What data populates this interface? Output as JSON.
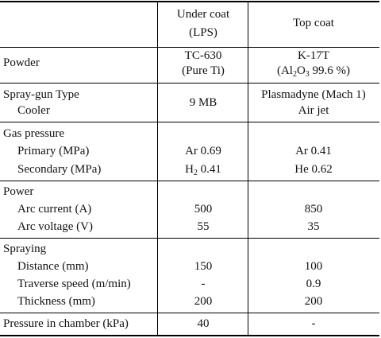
{
  "header": {
    "col1": "",
    "col2": "Under coat",
    "col2b": "(LPS)",
    "col3": "Top coat"
  },
  "powder": {
    "label": "Powder",
    "under": "TC-630",
    "under2": "(Pure Ti)",
    "top": "K-17T",
    "top2_pre": "(Al",
    "top2_sub1": "2",
    "top2_mid": "O",
    "top2_sub2": "3",
    "top2_post": " 99.6 %)"
  },
  "gun": {
    "label": "Spray-gun Type",
    "label2": "Cooler",
    "under": "9 MB",
    "top": "Plasmadyne (Mach 1)",
    "top2": "Air jet"
  },
  "gas": {
    "label": "Gas pressure",
    "primary_label": "Primary (MPa)",
    "primary_under": "Ar 0.69",
    "primary_top": "Ar 0.41",
    "secondary_label": "Secondary (MPa)",
    "secondary_under_pre": "H",
    "secondary_under_sub": "2",
    "secondary_under_post": " 0.41",
    "secondary_top": "He 0.62"
  },
  "power": {
    "label": "Power",
    "current_label": "Arc current (A)",
    "current_under": "500",
    "current_top": "850",
    "voltage_label": "Arc voltage (V)",
    "voltage_under": "55",
    "voltage_top": "35"
  },
  "spraying": {
    "label": "Spraying",
    "distance_label": "Distance (mm)",
    "distance_under": "150",
    "distance_top": "100",
    "traverse_label": "Traverse speed (m/min)",
    "traverse_under": "-",
    "traverse_top": "0.9",
    "thickness_label": "Thickness (mm)",
    "thickness_under": "200",
    "thickness_top": "200"
  },
  "chamber": {
    "label": "Pressure in chamber (kPa)",
    "under": "40",
    "top": "-"
  }
}
